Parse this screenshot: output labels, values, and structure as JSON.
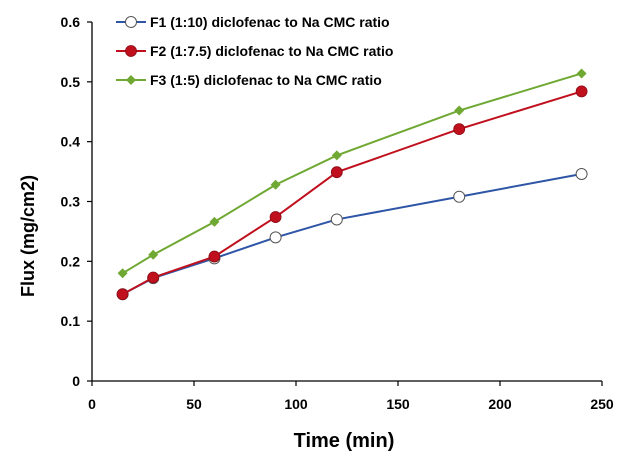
{
  "chart_data": {
    "type": "line",
    "title": "",
    "xlabel": "Time (min)",
    "ylabel": "Flux (mg/cm2)",
    "xlim": [
      0,
      250
    ],
    "ylim": [
      0,
      0.6
    ],
    "xticks": [
      0,
      50,
      100,
      150,
      200,
      250
    ],
    "yticks": [
      0,
      0.1,
      0.2,
      0.3,
      0.4,
      0.5,
      0.6
    ],
    "grid": false,
    "legend_position": "top-left",
    "x": [
      15,
      30,
      60,
      90,
      120,
      180,
      240
    ],
    "series": [
      {
        "name": "F1 (1:10) diclofenac to Na CMC ratio",
        "values": [
          0.145,
          0.172,
          0.205,
          0.24,
          0.27,
          0.308,
          0.346
        ],
        "line_color": "#2E55A6",
        "marker": "circle-open",
        "marker_color": "#555555"
      },
      {
        "name": "F2 (1:7.5) diclofenac to Na CMC ratio",
        "values": [
          0.145,
          0.173,
          0.208,
          0.274,
          0.349,
          0.421,
          0.484
        ],
        "line_color": "#C0101E",
        "marker": "circle-filled",
        "marker_color": "#C0101E"
      },
      {
        "name": "F3 (1:5) diclofenac to  Na CMC ratio",
        "values": [
          0.18,
          0.211,
          0.266,
          0.328,
          0.377,
          0.452,
          0.514
        ],
        "line_color": "#6FA832",
        "marker": "diamond",
        "marker_color": "#6FA832"
      }
    ]
  }
}
